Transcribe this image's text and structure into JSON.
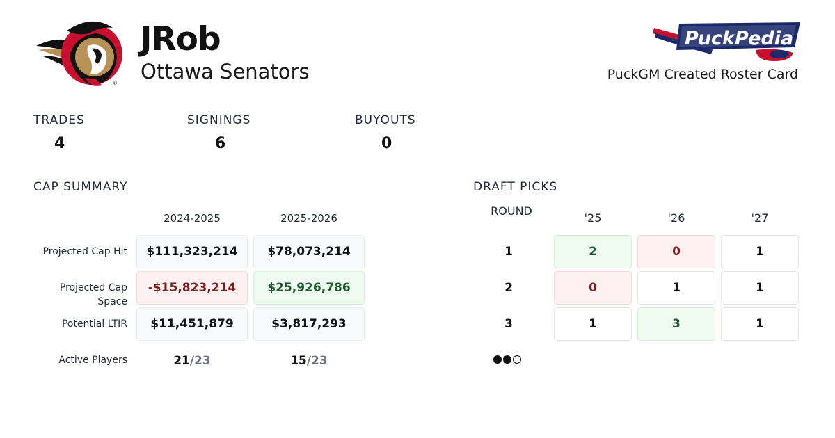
{
  "header": {
    "username": "JRob",
    "team": "Ottawa Senators",
    "card_label": "PuckGM Created Roster Card",
    "brand_text": "PuckPedia"
  },
  "stats": [
    {
      "label": "TRADES",
      "value": "4"
    },
    {
      "label": "SIGNINGS",
      "value": "6"
    },
    {
      "label": "BUYOUTS",
      "value": "0"
    }
  ],
  "cap_summary": {
    "title": "CAP SUMMARY",
    "seasons": [
      "2024-2025",
      "2025-2026"
    ],
    "rows": [
      {
        "label": "Projected Cap Hit",
        "values": [
          "$111,323,214",
          "$78,073,214"
        ],
        "status": [
          "neutral",
          "neutral"
        ]
      },
      {
        "label": "Projected Cap Space",
        "values": [
          "-$15,823,214",
          "$25,926,786"
        ],
        "status": [
          "negative",
          "positive"
        ]
      },
      {
        "label": "Potential LTIR",
        "values": [
          "$11,451,879",
          "$3,817,293"
        ],
        "status": [
          "neutral",
          "neutral"
        ]
      }
    ],
    "active_players": {
      "label": "Active Players",
      "values": [
        {
          "count": "21",
          "total": "/23"
        },
        {
          "count": "15",
          "total": "/23"
        }
      ]
    }
  },
  "draft_picks": {
    "title": "DRAFT PICKS",
    "round_header": "ROUND",
    "years": [
      "'25",
      "'26",
      "'27"
    ],
    "rows": [
      {
        "round": "1",
        "picks": [
          "2",
          "0",
          "1"
        ],
        "status": [
          "plus",
          "zero",
          "normal"
        ]
      },
      {
        "round": "2",
        "picks": [
          "0",
          "1",
          "1"
        ],
        "status": [
          "zero",
          "normal",
          "normal"
        ]
      },
      {
        "round": "3",
        "picks": [
          "1",
          "3",
          "1"
        ],
        "status": [
          "normal",
          "plus",
          "normal"
        ]
      }
    ],
    "indicator": {
      "filled": 2,
      "total": 3
    }
  },
  "colors": {
    "senators_red": "#c8102e",
    "senators_gold": "#b79257",
    "brand_navy": "#1b2a6b",
    "negative_bg": "#fdf1f1",
    "positive_bg": "#effbf1"
  },
  "icons": {
    "team_logo": "ottawa-senators-logo",
    "brand_logo": "puckpedia-logo"
  }
}
